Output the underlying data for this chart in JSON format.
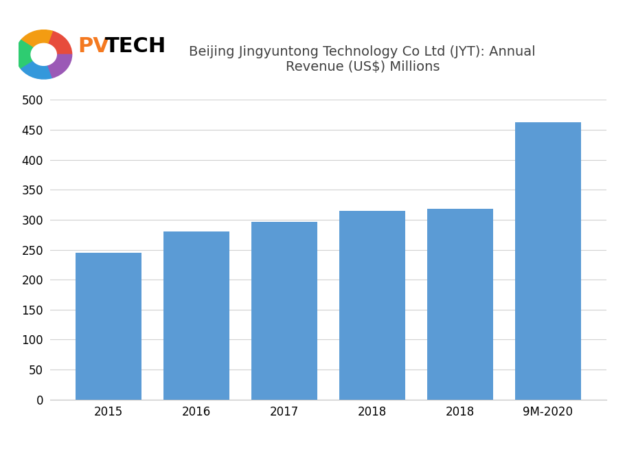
{
  "categories": [
    "2015",
    "2016",
    "2017",
    "2018",
    "2018",
    "9M-2020"
  ],
  "values": [
    245,
    280,
    297,
    315,
    318,
    463
  ],
  "bar_color": "#5B9BD5",
  "title": "Beijing Jingyuntong Technology Co Ltd (JYT): Annual\nRevenue (US$) Millions",
  "title_fontsize": 14,
  "title_color": "#404040",
  "ylim": [
    0,
    500
  ],
  "yticks": [
    0,
    50,
    100,
    150,
    200,
    250,
    300,
    350,
    400,
    450,
    500
  ],
  "background_color": "#ffffff",
  "grid_color": "#d0d0d0",
  "tick_fontsize": 12,
  "xtick_fontsize": 12,
  "bar_width": 0.75,
  "logo_pv_color": "#F47920",
  "logo_tech_color": "#000000",
  "logo_fontsize": 22,
  "spine_color": "#c0c0c0"
}
